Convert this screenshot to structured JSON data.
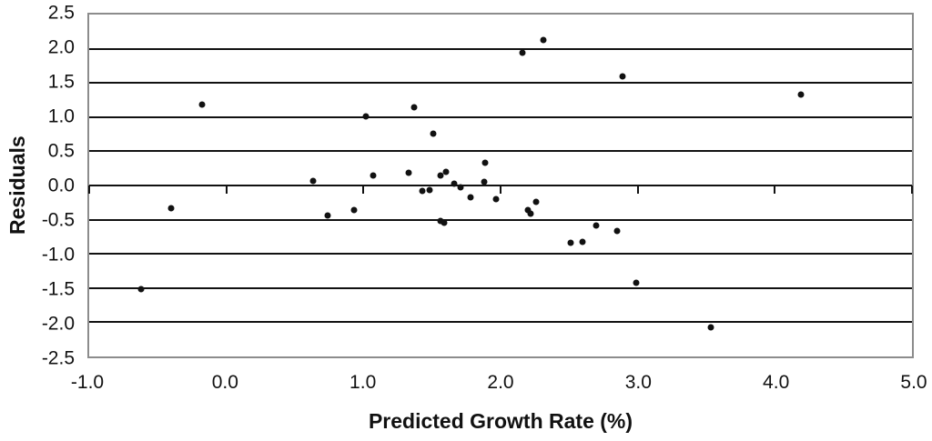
{
  "chart_data": {
    "type": "scatter",
    "title": "",
    "xlabel": "Predicted Growth Rate (%)",
    "ylabel": "Residuals",
    "xlim": [
      -1.0,
      5.0
    ],
    "ylim": [
      -2.5,
      2.5
    ],
    "x_ticks": [
      -1.0,
      0.0,
      1.0,
      2.0,
      3.0,
      4.0,
      5.0
    ],
    "x_tick_labels": [
      "-1.0",
      "0.0",
      "1.0",
      "2.0",
      "3.0",
      "4.0",
      "5.0"
    ],
    "y_ticks": [
      2.5,
      2.0,
      1.5,
      1.0,
      0.5,
      0.0,
      -0.5,
      -1.0,
      -1.5,
      -2.0,
      -2.5
    ],
    "y_tick_labels": [
      "2.5",
      "2.0",
      "1.5",
      "1.0",
      "0.5",
      "0.0",
      "-0.5",
      "-1.0",
      "-1.5",
      "-2.0",
      "-2.5"
    ],
    "grid": "horizontal-only",
    "legend": "none",
    "marker": "filled-black-circle",
    "points": [
      [
        -0.62,
        -1.52
      ],
      [
        -0.4,
        -0.33
      ],
      [
        -0.18,
        1.18
      ],
      [
        0.63,
        0.07
      ],
      [
        0.74,
        -0.44
      ],
      [
        0.93,
        -0.36
      ],
      [
        1.02,
        1.01
      ],
      [
        1.07,
        0.14
      ],
      [
        1.33,
        0.18
      ],
      [
        1.37,
        1.14
      ],
      [
        1.43,
        -0.08
      ],
      [
        1.48,
        -0.06
      ],
      [
        1.51,
        0.76
      ],
      [
        1.56,
        0.15
      ],
      [
        1.6,
        0.2
      ],
      [
        1.56,
        -0.52
      ],
      [
        1.59,
        -0.55
      ],
      [
        1.66,
        0.02
      ],
      [
        1.71,
        -0.03
      ],
      [
        1.78,
        -0.17
      ],
      [
        1.88,
        0.05
      ],
      [
        1.89,
        0.33
      ],
      [
        1.97,
        -0.2
      ],
      [
        2.16,
        1.94
      ],
      [
        2.2,
        -0.36
      ],
      [
        2.22,
        -0.41
      ],
      [
        2.26,
        -0.24
      ],
      [
        2.31,
        2.13
      ],
      [
        2.51,
        -0.84
      ],
      [
        2.6,
        -0.82
      ],
      [
        2.7,
        -0.59
      ],
      [
        2.85,
        -0.66
      ],
      [
        2.89,
        1.6
      ],
      [
        2.99,
        -1.42
      ],
      [
        3.53,
        -2.07
      ],
      [
        4.19,
        1.33
      ]
    ]
  },
  "colors": {
    "background": "#ffffff",
    "plot_border": "#8c8c8c",
    "gridline": "#111111",
    "axis_tick": "#111111",
    "marker": "#111111",
    "text": "#111111"
  }
}
